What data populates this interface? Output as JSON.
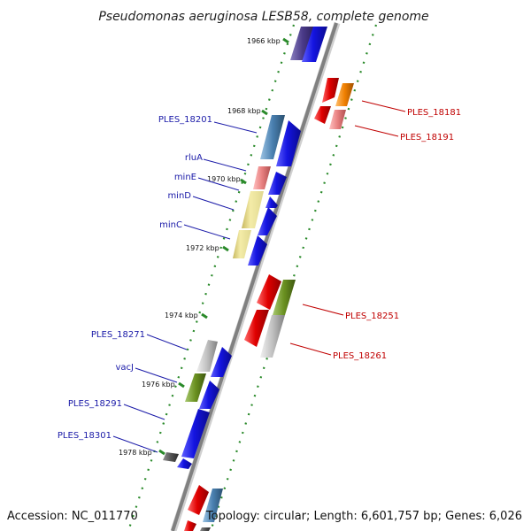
{
  "title": "Pseudomonas aeruginosa LESB58, complete genome",
  "footer": {
    "accession": "Accession: NC_011770",
    "summary": "Topology: circular; Length: 6,601,757 bp; Genes: 6,026"
  },
  "kbp_labels": {
    "k1966": "1966 kbp",
    "k1968": "1968 kbp",
    "k1970": "1970 kbp",
    "k1972": "1972 kbp",
    "k1974": "1974 kbp",
    "k1976": "1976 kbp",
    "k1978": "1978 kbp"
  },
  "genes_left": {
    "ples_18201": "PLES_18201",
    "rluA": "rluA",
    "minE": "minE",
    "minD": "minD",
    "minC": "minC",
    "ples_18271": "PLES_18271",
    "vacJ": "vacJ",
    "ples_18291": "PLES_18291",
    "ples_18301": "PLES_18301"
  },
  "genes_right": {
    "ples_18181": "PLES_18181",
    "ples_18191": "PLES_18191",
    "ples_18251": "PLES_18251",
    "ples_18261": "PLES_18261"
  },
  "colors": {
    "backbone": "#8a8a8a",
    "blue": "#1414e0",
    "red": "#e00000",
    "orange": "#f08000",
    "pink": "#e88080",
    "steel": "#4a80b0",
    "khaki": "#e8e090",
    "olive": "#6a9020",
    "grey": "#b8b8b8",
    "dark": "#555555",
    "purple": "#4a3a88",
    "tick": "#2a8a2a",
    "label_left": "#1a1aa8",
    "label_right": "#c00000"
  }
}
